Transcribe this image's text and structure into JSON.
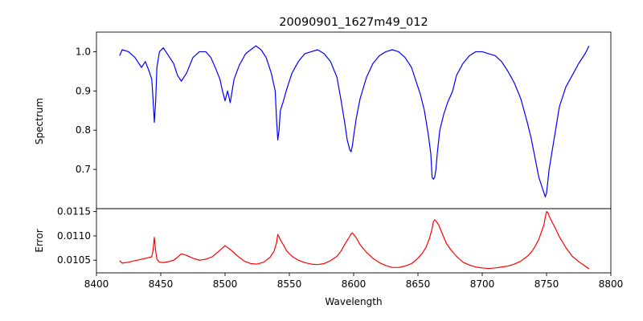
{
  "chart_data": {
    "type": "line",
    "title": "20090901_1627m49_012",
    "xlabel": "Wavelength",
    "xlim": [
      8400,
      8800
    ],
    "xticks": [
      8400,
      8450,
      8500,
      8550,
      8600,
      8650,
      8700,
      8750,
      8800
    ],
    "xtick_labels": [
      "8400",
      "8450",
      "8500",
      "8550",
      "8600",
      "8650",
      "8700",
      "8750",
      "8800"
    ],
    "colors": {
      "spectrum": "#0000ff",
      "error": "#ff0000"
    },
    "panels": [
      {
        "name": "spectrum",
        "ylabel": "Spectrum",
        "ylim": [
          0.6,
          1.05
        ],
        "yticks": [
          0.7,
          0.8,
          0.9,
          1.0
        ],
        "ytick_labels": [
          "0.7",
          "0.8",
          "0.9",
          "1.0"
        ],
        "series": [
          {
            "name": "Spectrum",
            "color": "#0000ff",
            "x": [
              8418,
              8420,
              8425,
              8430,
              8435,
              8438,
              8441,
              8443,
              8444,
              8445,
              8446,
              8447,
              8449,
              8452,
              8456,
              8460,
              8463,
              8466,
              8470,
              8475,
              8480,
              8485,
              8489,
              8493,
              8496,
              8498,
              8500,
              8502,
              8504,
              8507,
              8511,
              8516,
              8520,
              8524,
              8528,
              8532,
              8536,
              8539,
              8540,
              8541,
              8542,
              8543,
              8545,
              8548,
              8552,
              8557,
              8562,
              8567,
              8572,
              8577,
              8582,
              8587,
              8590,
              8593,
              8595,
              8597,
              8598,
              8599,
              8600,
              8602,
              8605,
              8610,
              8615,
              8620,
              8625,
              8630,
              8635,
              8640,
              8645,
              8648,
              8652,
              8655,
              8658,
              8660,
              8661,
              8662,
              8663,
              8664,
              8665,
              8667,
              8670,
              8673,
              8677,
              8680,
              8685,
              8690,
              8695,
              8700,
              8705,
              8710,
              8715,
              8720,
              8725,
              8730,
              8735,
              8738,
              8741,
              8744,
              8746,
              8748,
              8749,
              8750,
              8751,
              8752,
              8754,
              8757,
              8760,
              8765,
              8770,
              8775,
              8780,
              8783
            ],
            "values": [
              0.99,
              1.005,
              1.0,
              0.985,
              0.96,
              0.975,
              0.95,
              0.93,
              0.88,
              0.82,
              0.87,
              0.96,
              1.0,
              1.01,
              0.99,
              0.97,
              0.94,
              0.925,
              0.945,
              0.985,
              1.0,
              1.0,
              0.985,
              0.955,
              0.93,
              0.9,
              0.875,
              0.9,
              0.87,
              0.93,
              0.965,
              0.995,
              1.005,
              1.015,
              1.005,
              0.985,
              0.945,
              0.9,
              0.83,
              0.775,
              0.8,
              0.85,
              0.87,
              0.905,
              0.945,
              0.975,
              0.995,
              1.0,
              1.005,
              0.995,
              0.975,
              0.935,
              0.88,
              0.82,
              0.775,
              0.75,
              0.745,
              0.76,
              0.785,
              0.83,
              0.88,
              0.935,
              0.97,
              0.99,
              1.0,
              1.005,
              1.0,
              0.985,
              0.96,
              0.93,
              0.89,
              0.85,
              0.79,
              0.74,
              0.68,
              0.675,
              0.68,
              0.7,
              0.74,
              0.8,
              0.84,
              0.87,
              0.9,
              0.94,
              0.97,
              0.99,
              1.0,
              1.0,
              0.995,
              0.99,
              0.975,
              0.95,
              0.92,
              0.88,
              0.82,
              0.78,
              0.73,
              0.68,
              0.66,
              0.64,
              0.63,
              0.64,
              0.67,
              0.7,
              0.74,
              0.8,
              0.86,
              0.91,
              0.94,
              0.97,
              0.995,
              1.015
            ]
          }
        ]
      },
      {
        "name": "error",
        "ylabel": "Error",
        "ylim": [
          0.01024,
          0.01156
        ],
        "yticks": [
          0.0105,
          0.011,
          0.0115
        ],
        "ytick_labels": [
          "0.0105",
          "0.0110",
          "0.0115"
        ],
        "series": [
          {
            "name": "Error",
            "color": "#ff0000",
            "x": [
              8418,
              8420,
              8425,
              8430,
              8435,
              8440,
              8443,
              8444,
              8445,
              8446,
              8447,
              8449,
              8452,
              8456,
              8460,
              8463,
              8466,
              8470,
              8475,
              8480,
              8485,
              8490,
              8495,
              8498,
              8500,
              8502,
              8505,
              8510,
              8515,
              8520,
              8525,
              8530,
              8535,
              8538,
              8540,
              8541,
              8542,
              8543,
              8545,
              8548,
              8552,
              8557,
              8562,
              8567,
              8572,
              8577,
              8582,
              8587,
              8590,
              8593,
              8596,
              8598,
              8599,
              8600,
              8602,
              8605,
              8610,
              8615,
              8620,
              8625,
              8630,
              8635,
              8640,
              8645,
              8650,
              8653,
              8656,
              8659,
              8661,
              8662,
              8663,
              8664,
              8666,
              8669,
              8672,
              8676,
              8680,
              8685,
              8690,
              8695,
              8700,
              8705,
              8710,
              8715,
              8720,
              8725,
              8730,
              8735,
              8738,
              8741,
              8744,
              8746,
              8748,
              8749,
              8750,
              8751,
              8752,
              8754,
              8757,
              8760,
              8765,
              8770,
              8775,
              8780,
              8783
            ],
            "values": [
              0.01049,
              0.01044,
              0.01046,
              0.01049,
              0.01052,
              0.01055,
              0.01057,
              0.0107,
              0.01097,
              0.0107,
              0.01052,
              0.01046,
              0.01045,
              0.01047,
              0.0105,
              0.01056,
              0.01063,
              0.0106,
              0.01054,
              0.0105,
              0.01052,
              0.01057,
              0.01068,
              0.01075,
              0.0108,
              0.01076,
              0.0107,
              0.01058,
              0.01048,
              0.01043,
              0.01042,
              0.01046,
              0.01056,
              0.01068,
              0.01085,
              0.01103,
              0.01098,
              0.01092,
              0.01083,
              0.01069,
              0.01058,
              0.0105,
              0.01045,
              0.01042,
              0.01041,
              0.01043,
              0.01049,
              0.01058,
              0.01068,
              0.01082,
              0.01095,
              0.01104,
              0.01106,
              0.01103,
              0.01096,
              0.01082,
              0.01066,
              0.01054,
              0.01045,
              0.01039,
              0.01035,
              0.01035,
              0.01038,
              0.01043,
              0.01054,
              0.01063,
              0.01075,
              0.01095,
              0.01115,
              0.01129,
              0.01133,
              0.01131,
              0.01123,
              0.01104,
              0.01085,
              0.0107,
              0.01058,
              0.01046,
              0.0104,
              0.01036,
              0.01034,
              0.01033,
              0.01034,
              0.01036,
              0.01038,
              0.01042,
              0.01048,
              0.01058,
              0.01066,
              0.01078,
              0.01093,
              0.01108,
              0.01123,
              0.01138,
              0.0115,
              0.01148,
              0.01141,
              0.0113,
              0.01115,
              0.01098,
              0.01076,
              0.01058,
              0.01047,
              0.01038,
              0.01032
            ]
          }
        ]
      }
    ]
  }
}
